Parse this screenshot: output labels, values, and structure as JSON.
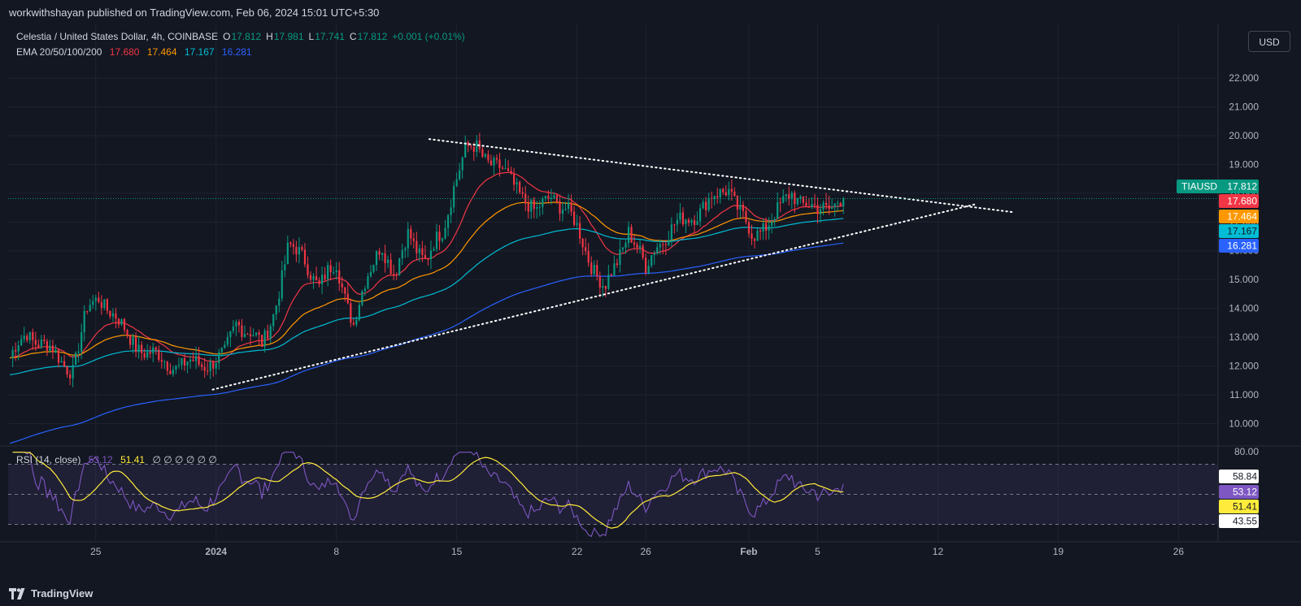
{
  "header": {
    "published": "workwithshayan published on TradingView.com, Feb 06, 2024 15:01 UTC+5:30"
  },
  "footer": {
    "brand": "TradingView"
  },
  "currency_button": "USD",
  "legend": {
    "symbol": "Celestia / United States Dollar, 4h, COINBASE",
    "o_label": "O",
    "open": "17.812",
    "h_label": "H",
    "high": "17.981",
    "l_label": "L",
    "low": "17.741",
    "c_label": "C",
    "close": "17.812",
    "change": "+0.001 (+0.01%)",
    "ema_label": "EMA 20/50/100/200",
    "ema20": "17.680",
    "ema50": "17.464",
    "ema100": "17.167",
    "ema200": "16.281",
    "rsi_label": "RSI (14, close)",
    "rsi_value": "53.12",
    "rsi_ma": "51.41",
    "rsi_extra": "∅ ∅ ∅ ∅ ∅ ∅"
  },
  "colors": {
    "background": "#131722",
    "up": "#089981",
    "down": "#f23645",
    "ema20": "#f23645",
    "ema50": "#ff9800",
    "ema100": "#00bcd4",
    "ema200": "#2962ff",
    "rsi": "#7e57c2",
    "rsi_ma": "#ffeb3b"
  },
  "chart_data": {
    "type": "line",
    "symbol": "TIAUSD",
    "price_ticks": [
      "22.000",
      "21.000",
      "20.000",
      "19.000",
      "18.000",
      "17.000",
      "16.000",
      "15.000",
      "14.000",
      "13.000",
      "12.000",
      "11.000",
      "10.000"
    ],
    "y_range": [
      9.25,
      23.3
    ],
    "x_ticks": [
      "25",
      "2024",
      "8",
      "15",
      "22",
      "26",
      "Feb",
      "5",
      "12",
      "19",
      "26"
    ],
    "x_tick_days": [
      -7,
      0,
      7,
      14,
      21,
      25,
      31,
      35,
      42,
      49,
      56
    ],
    "x_range_days": [
      -12.1,
      58.3
    ],
    "last_day": 36.5,
    "price_labels": [
      {
        "name": "TIAUSD",
        "value": "17.812",
        "price": 17.812,
        "color": "#089981"
      },
      {
        "name": "",
        "value": "17.680",
        "price": 17.68,
        "color": "#f23645"
      },
      {
        "name": "",
        "value": "17.464",
        "price": 17.464,
        "color": "#ff9800"
      },
      {
        "name": "",
        "value": "17.167",
        "price": 17.167,
        "color": "#00bcd4"
      },
      {
        "name": "",
        "value": "16.281",
        "price": 16.281,
        "color": "#2962ff"
      }
    ],
    "anchors": [
      [
        -12.0,
        12.2
      ],
      [
        -11.0,
        13.2
      ],
      [
        -9.0,
        12.2
      ],
      [
        -8.3,
        11.9
      ],
      [
        -7.5,
        13.9
      ],
      [
        -6.8,
        14.5
      ],
      [
        -5.5,
        13.3
      ],
      [
        -4.0,
        12.4
      ],
      [
        -2.0,
        12.0
      ],
      [
        -0.8,
        12.1
      ],
      [
        0.5,
        12.3
      ],
      [
        1.2,
        13.6
      ],
      [
        2.0,
        13.2
      ],
      [
        2.7,
        12.6
      ],
      [
        3.3,
        13.8
      ],
      [
        4.2,
        16.1
      ],
      [
        5.2,
        15.7
      ],
      [
        6.0,
        14.8
      ],
      [
        7.0,
        15.5
      ],
      [
        8.0,
        13.5
      ],
      [
        8.8,
        15.0
      ],
      [
        9.6,
        16.4
      ],
      [
        10.4,
        15.0
      ],
      [
        11.2,
        16.7
      ],
      [
        12.2,
        15.6
      ],
      [
        13.2,
        16.7
      ],
      [
        13.8,
        18.3
      ],
      [
        14.5,
        19.4
      ],
      [
        15.2,
        19.6
      ],
      [
        16.0,
        19.1
      ],
      [
        16.8,
        18.6
      ],
      [
        17.6,
        18.2
      ],
      [
        18.6,
        17.2
      ],
      [
        19.5,
        18.0
      ],
      [
        20.4,
        17.4
      ],
      [
        21.2,
        16.5
      ],
      [
        22.0,
        15.4
      ],
      [
        22.6,
        14.6
      ],
      [
        23.2,
        15.4
      ],
      [
        24.0,
        16.8
      ],
      [
        25.0,
        15.3
      ],
      [
        25.6,
        16.3
      ],
      [
        26.5,
        16.7
      ],
      [
        27.5,
        17.2
      ],
      [
        28.5,
        17.6
      ],
      [
        29.2,
        17.9
      ],
      [
        29.8,
        18.3
      ],
      [
        30.5,
        17.3
      ],
      [
        31.2,
        16.4
      ],
      [
        32.0,
        17.0
      ],
      [
        32.8,
        17.4
      ],
      [
        33.5,
        18.0
      ],
      [
        34.3,
        17.7
      ],
      [
        35.0,
        17.3
      ],
      [
        35.6,
        17.5
      ],
      [
        36.2,
        17.9
      ],
      [
        36.5,
        17.81
      ]
    ],
    "trendlines": [
      {
        "name": "descending resistance",
        "from": [
          12.4,
          19.88
        ],
        "to": [
          46.4,
          17.34
        ]
      },
      {
        "name": "ascending support",
        "from": [
          -0.2,
          11.18
        ],
        "to": [
          44.2,
          17.62
        ]
      }
    ],
    "rsi_panel": {
      "levels": [
        "58.84",
        "53.12",
        "51.41",
        "43.55"
      ],
      "upper_band": 70,
      "lower_band": 30,
      "middle": 50,
      "scale_label": "80.00"
    }
  }
}
